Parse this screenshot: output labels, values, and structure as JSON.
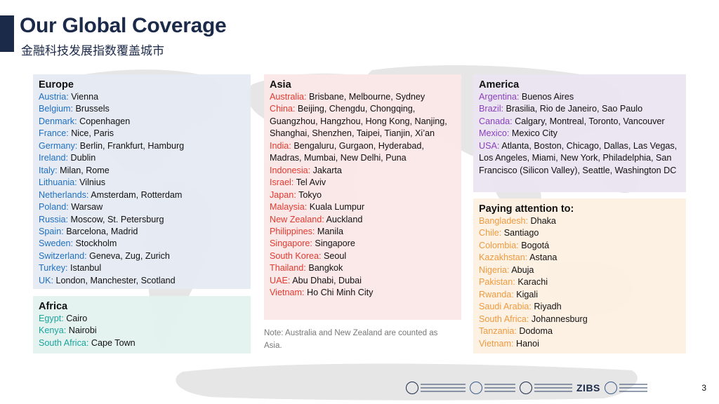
{
  "header": {
    "title": "Our Global Coverage",
    "subtitle": "金融科技发展指数覆盖城市"
  },
  "europe": {
    "heading": "Europe",
    "rows": [
      {
        "country": "Austria:",
        "cities": "Vienna"
      },
      {
        "country": "Belgium:",
        "cities": "Brussels"
      },
      {
        "country": "Denmark:",
        "cities": "Copenhagen"
      },
      {
        "country": "France:",
        "cities": "Nice, Paris"
      },
      {
        "country": "Germany:",
        "cities": "Berlin, Frankfurt, Hamburg"
      },
      {
        "country": "Ireland:",
        "cities": "Dublin"
      },
      {
        "country": "Italy:",
        "cities": "Milan, Rome"
      },
      {
        "country": "Lithuania:",
        "cities": "Vilnius"
      },
      {
        "country": "Netherlands:",
        "cities": "Amsterdam, Rotterdam"
      },
      {
        "country": "Poland:",
        "cities": "Warsaw"
      },
      {
        "country": "Russia:",
        "cities": "Moscow, St. Petersburg"
      },
      {
        "country": "Spain:",
        "cities": "Barcelona, Madrid"
      },
      {
        "country": "Sweden:",
        "cities": "Stockholm"
      },
      {
        "country": "Switzerland:",
        "cities": "Geneva, Zug, Zurich"
      },
      {
        "country": "Turkey:",
        "cities": "Istanbul"
      },
      {
        "country": "UK:",
        "cities": "London, Manchester, Scotland"
      }
    ]
  },
  "africa": {
    "heading": "Africa",
    "rows": [
      {
        "country": "Egypt:",
        "cities": "Cairo"
      },
      {
        "country": "Kenya:",
        "cities": "Nairobi"
      },
      {
        "country": "South Africa:",
        "cities": "Cape Town"
      }
    ]
  },
  "asia": {
    "heading": "Asia",
    "rows": [
      {
        "country": "Australia:",
        "cities": "Brisbane, Melbourne, Sydney"
      },
      {
        "country": "China:",
        "cities": "Beijing, Chengdu, Chongqing, Guangzhou, Hangzhou, Hong Kong, Nanjing, Shanghai, Shenzhen, Taipei, Tianjin, Xi’an"
      },
      {
        "country": "India:",
        "cities": "Bengaluru, Gurgaon, Hyderabad, Madras, Mumbai, New Delhi, Puna"
      },
      {
        "country": "Indonesia:",
        "cities": "Jakarta"
      },
      {
        "country": "Israel:",
        "cities": "Tel Aviv"
      },
      {
        "country": "Japan:",
        "cities": "Tokyo"
      },
      {
        "country": "Malaysia:",
        "cities": "Kuala Lumpur"
      },
      {
        "country": "New Zealand:",
        "cities": "Auckland"
      },
      {
        "country": "Philippines:",
        "cities": "Manila"
      },
      {
        "country": "Singapore:",
        "cities": "Singapore"
      },
      {
        "country": "South Korea:",
        "cities": "Seoul"
      },
      {
        "country": "Thailand:",
        "cities": "Bangkok"
      },
      {
        "country": "UAE:",
        "cities": "Abu Dhabi, Dubai"
      },
      {
        "country": "Vietnam:",
        "cities": "Ho Chi Minh City"
      }
    ],
    "note": "Note: Australia and New Zealand are counted as Asia."
  },
  "america": {
    "heading": "America",
    "rows": [
      {
        "country": "Argentina:",
        "cities": "Buenos Aires"
      },
      {
        "country": "Brazil:",
        "cities": "Brasilia, Rio de Janeiro, Sao Paulo"
      },
      {
        "country": "Canada:",
        "cities": "Calgary, Montreal, Toronto, Vancouver"
      },
      {
        "country": "Mexico:",
        "cities": "Mexico City"
      },
      {
        "country": "USA:",
        "cities": "Atlanta, Boston, Chicago, Dallas, Las Vegas, Los Angeles, Miami, New York, Philadelphia, San Francisco (Silicon Valley), Seattle, Washington DC"
      }
    ]
  },
  "attention": {
    "heading": "Paying attention to:",
    "rows": [
      {
        "country": "Bangladesh:",
        "cities": "Dhaka"
      },
      {
        "country": "Chile:",
        "cities": "Santiago"
      },
      {
        "country": "Colombia:",
        "cities": "Bogotá"
      },
      {
        "country": "Kazakhstan:",
        "cities": "Astana"
      },
      {
        "country": "Nigeria:",
        "cities": "Abuja"
      },
      {
        "country": "Pakistan:",
        "cities": "Karachi"
      },
      {
        "country": "Rwanda:",
        "cities": "Kigali"
      },
      {
        "country": "Saudi Arabia:",
        "cities": "Riyadh"
      },
      {
        "country": "South Africa:",
        "cities": "Johannesburg"
      },
      {
        "country": "Tanzania:",
        "cities": "Dodoma"
      },
      {
        "country": "Vietnam:",
        "cities": "Hanoi"
      }
    ]
  },
  "footer": {
    "logo_label": "ZIBS",
    "page_number": "3"
  },
  "colors": {
    "title": "#1c2a4a",
    "europe_country": "#1f6fc0",
    "africa_country": "#1ba39c",
    "asia_country": "#e23a2e",
    "america_country": "#8a3fbf",
    "attention_country": "#ee9a3e",
    "europe_bg": "#e5ebf3",
    "africa_bg": "#e2f2ef",
    "asia_bg": "#fbe6e7",
    "america_bg": "#eae4f0",
    "attention_bg": "#fdf0e2"
  }
}
